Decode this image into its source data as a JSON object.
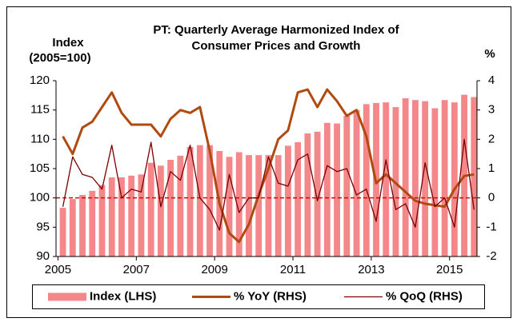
{
  "chart_data": {
    "type": "combo",
    "title": [
      "PT: Quarterly Average Harmonized Index of",
      "Consumer Prices and Growth"
    ],
    "ylabel": [
      "Index",
      "(2005=100)"
    ],
    "y2label": "%",
    "x": [
      2005.125,
      2005.375,
      2005.625,
      2005.875,
      2006.125,
      2006.375,
      2006.625,
      2006.875,
      2007.125,
      2007.375,
      2007.625,
      2007.875,
      2008.125,
      2008.375,
      2008.625,
      2008.875,
      2009.125,
      2009.375,
      2009.625,
      2009.875,
      2010.125,
      2010.375,
      2010.625,
      2010.875,
      2011.125,
      2011.375,
      2011.625,
      2011.875,
      2012.125,
      2012.375,
      2012.625,
      2012.875,
      2013.125,
      2013.375,
      2013.625,
      2013.875,
      2014.125,
      2014.375,
      2014.625,
      2014.875,
      2015.125,
      2015.375,
      2015.625
    ],
    "xlim": [
      2004.95,
      2015.7
    ],
    "xticks": [
      2005,
      2007,
      2009,
      2011,
      2013,
      2015
    ],
    "ylim": [
      90,
      120
    ],
    "yticks": [
      90,
      95,
      100,
      105,
      110,
      115,
      120
    ],
    "y2lim": [
      -2,
      4
    ],
    "y2ticks": [
      -2,
      -1,
      0,
      1,
      2,
      3,
      4
    ],
    "reference_line": {
      "axis": "y2",
      "value": 0,
      "color": "#e00000"
    },
    "series": [
      {
        "name": "Index (LHS)",
        "type": "bar",
        "color": "#f4878a",
        "values": [
          98.3,
          99.8,
          100.5,
          101.2,
          102.2,
          103.5,
          103.5,
          103.8,
          104.0,
          106.0,
          105.5,
          106.5,
          107.2,
          108.7,
          109.0,
          109.0,
          108.0,
          107.0,
          107.8,
          107.3,
          107.3,
          107.3,
          107.3,
          108.9,
          109.5,
          111.0,
          111.3,
          112.8,
          112.7,
          114.0,
          115.0,
          116.0,
          116.2,
          116.3,
          115.5,
          117.0,
          116.7,
          116.5,
          115.3,
          116.7,
          116.3,
          117.6,
          117.2
        ]
      },
      {
        "name": "% YoY (RHS)",
        "type": "line",
        "axis": "y2",
        "color": "#b04a10",
        "width": 3,
        "values": [
          2.1,
          1.5,
          2.4,
          2.6,
          3.1,
          3.6,
          2.9,
          2.5,
          2.5,
          2.5,
          2.1,
          2.7,
          3.0,
          2.9,
          3.1,
          1.6,
          -0.2,
          -1.2,
          -1.5,
          -0.9,
          0.1,
          1.0,
          2.0,
          2.3,
          3.6,
          3.7,
          3.1,
          3.7,
          3.3,
          2.8,
          3.0,
          2.1,
          0.5,
          0.8,
          0.5,
          0.2,
          -0.1,
          -0.2,
          -0.25,
          -0.3,
          0.3,
          0.75,
          0.8
        ]
      },
      {
        "name": "% QoQ (RHS)",
        "type": "line",
        "axis": "y2",
        "color": "#7a0000",
        "width": 1.3,
        "values": [
          -0.3,
          1.4,
          0.8,
          0.7,
          0.3,
          1.8,
          0.0,
          0.3,
          0.2,
          1.9,
          -0.3,
          0.9,
          0.6,
          1.8,
          0.0,
          -0.4,
          -1.1,
          0.8,
          -0.5,
          0.0,
          0.0,
          1.4,
          0.5,
          0.4,
          1.3,
          1.5,
          -0.1,
          1.1,
          0.9,
          1.0,
          0.1,
          0.3,
          -0.8,
          1.3,
          -0.4,
          -0.2,
          -1.0,
          1.2,
          -0.3,
          0.0,
          -1.0,
          2.0,
          -0.4
        ]
      }
    ]
  }
}
